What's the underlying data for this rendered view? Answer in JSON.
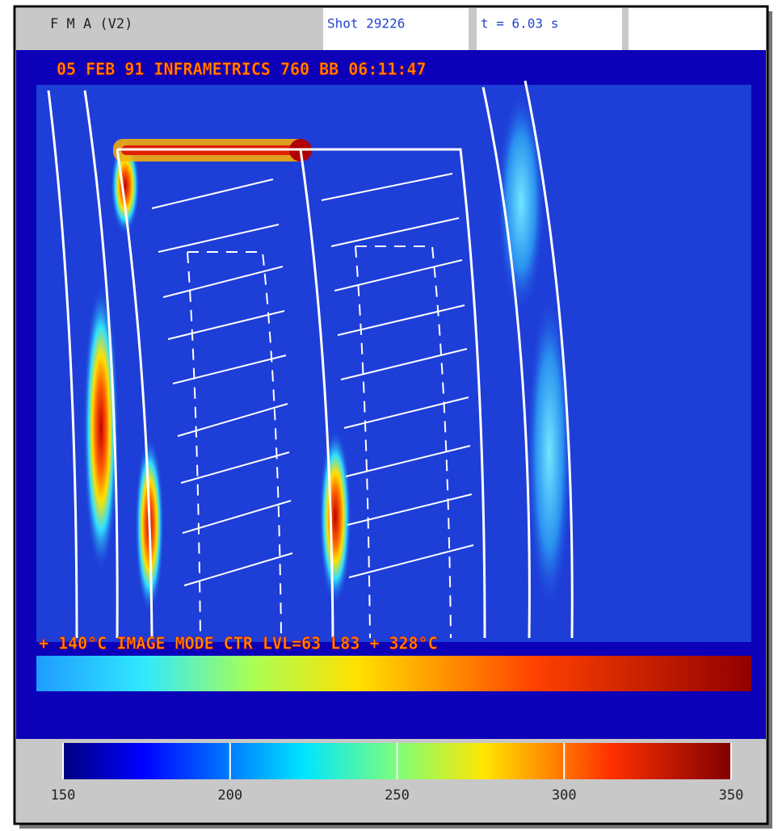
{
  "header": {
    "title": "F M A (V2)",
    "shot": "Shot 29226",
    "time": "t = 6.03 s"
  },
  "image": {
    "stamp": "05 FEB 91 INFRAMETRICS 760 BB 06:11:47",
    "status": "+ 140°C IMAGE MODE CTR LVL=63 L83 + 328°C"
  },
  "colorbar": {
    "lim": [
      150,
      350
    ],
    "ticks": [
      150,
      200,
      250,
      300,
      350
    ]
  }
}
